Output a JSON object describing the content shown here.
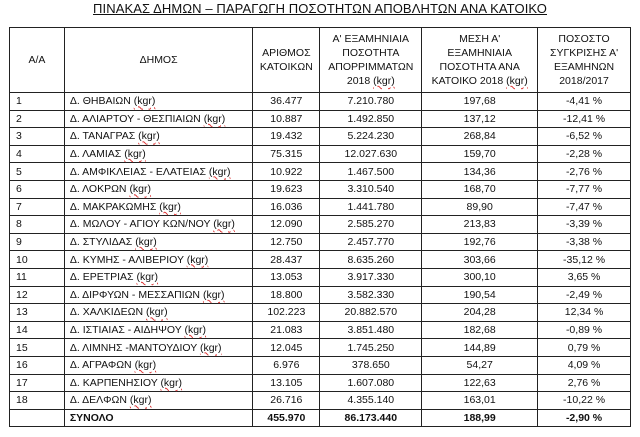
{
  "title": "ΠΙΝΑΚΑΣ ΔΗΜΩΝ – ΠΑΡΑΓΩΓΗ ΠΟΣΟΤΗΤΩΝ ΑΠΟΒΛΗΤΩΝ ΑΝΑ ΚΑΤΟΙΚΟ",
  "headers": {
    "aa": "Α/Α",
    "municipality": "ΔΗΜΟΣ",
    "population": "ΑΡΙΘΜΟΣ ΚΑΤΟΙΚΩΝ",
    "quantity": "Α' ΕΞΑΜΗΝΙΑΙΑ ΠΟΣΟΤΗΤΑ ΑΠΟΡΡΙΜΜΑΤΩΝ 2018",
    "quantity_unit": "(kgr)",
    "per_capita": "ΜΕΣΗ Α' ΕΞΑΜΗΝΙΑΙΑ ΠΟΣΟΤΗΤΑ ΑΝΑ ΚΑΤΟΙΚΟ 2018",
    "per_capita_unit": "(kgr)",
    "comparison": "ΠΟΣΟΣΤΟ ΣΥΓΚΡΙΣΗΣ Α' ΕΞΑΜΗΝΩΝ 2018/2017"
  },
  "rows": [
    {
      "aa": "1",
      "name": "Δ. ΘΗΒΑΙΩΝ",
      "unit": "(kgr)",
      "population": "36.477",
      "quantity": "7.210.780",
      "per_capita": "197,68",
      "change": "-4,41 %"
    },
    {
      "aa": "2",
      "name": "Δ. ΑΛΙΑΡΤΟΥ - ΘΕΣΠΙΑΙΩΝ",
      "unit": "(kgr)",
      "population": "10.887",
      "quantity": "1.492.850",
      "per_capita": "137,12",
      "change": "-12,41 %"
    },
    {
      "aa": "3",
      "name": "Δ. ΤΑΝΑΓΡΑΣ",
      "unit": "(kgr)",
      "population": "19.432",
      "quantity": "5.224.230",
      "per_capita": "268,84",
      "change": "-6,52 %"
    },
    {
      "aa": "4",
      "name": "Δ. ΛΑΜΙΑΣ",
      "unit": "(kgr)",
      "population": "75.315",
      "quantity": "12.027.630",
      "per_capita": "159,70",
      "change": "-2,28 %"
    },
    {
      "aa": "5",
      "name": "Δ. ΑΜΦΙΚΛΕΙΑΣ - ΕΛΑΤΕΙΑΣ",
      "unit": "(kgr)",
      "population": "10.922",
      "quantity": "1.467.500",
      "per_capita": "134,36",
      "change": "-2,76 %"
    },
    {
      "aa": "6",
      "name": "Δ. ΛΟΚΡΩΝ",
      "unit": "(kgr)",
      "population": "19.623",
      "quantity": "3.310.540",
      "per_capita": "168,70",
      "change": "-7,77 %"
    },
    {
      "aa": "7",
      "name": "Δ. ΜΑΚΡΑΚΩΜΗΣ",
      "unit": "(kgr)",
      "population": "16.036",
      "quantity": "1.441.780",
      "per_capita": "89,90",
      "change": "-7,47 %"
    },
    {
      "aa": "8",
      "name": "Δ. ΜΩΛΟΥ - ΑΓΙΟΥ ΚΩΝ/ΝΟΥ",
      "unit": "(kgr)",
      "population": "12.090",
      "quantity": "2.585.270",
      "per_capita": "213,83",
      "change": "-3,39 %"
    },
    {
      "aa": "9",
      "name": "Δ. ΣΤΥΛΙΔΑΣ",
      "unit": "(kgr)",
      "population": "12.750",
      "quantity": "2.457.770",
      "per_capita": "192,76",
      "change": "-3,38 %"
    },
    {
      "aa": "10",
      "name": "Δ. ΚΥΜΗΣ - ΑΛΙΒΕΡΙΟΥ",
      "unit": "(kgr)",
      "population": "28.437",
      "quantity": "8.635.260",
      "per_capita": "303,66",
      "change": "-35,12 %"
    },
    {
      "aa": "11",
      "name": "Δ. ΕΡΕΤΡΙΑΣ",
      "unit": "(kgr)",
      "population": "13.053",
      "quantity": "3.917.330",
      "per_capita": "300,10",
      "change": "3,65 %"
    },
    {
      "aa": "12",
      "name": "Δ. ΔΙΡΦΥΩΝ - ΜΕΣΣΑΠΙΩΝ",
      "unit": "(kgr)",
      "population": "18.800",
      "quantity": "3.582.330",
      "per_capita": "190,54",
      "change": "-2,49 %"
    },
    {
      "aa": "13",
      "name": "Δ. ΧΑΛΚΙΔΕΩΝ",
      "unit": "(kgr)",
      "population": "102.223",
      "quantity": "20.882.570",
      "per_capita": "204,28",
      "change": "12,34 %"
    },
    {
      "aa": "14",
      "name": "Δ. ΙΣΤΙΑΙΑΣ - ΑΙΔΗΨΟΥ",
      "unit": "(kgr)",
      "population": "21.083",
      "quantity": "3.851.480",
      "per_capita": "182,68",
      "change": "-0,89 %"
    },
    {
      "aa": "15",
      "name": "Δ. ΛΙΜΝΗΣ -ΜΑΝΤΟΥΔΙΟΥ",
      "unit": "(kgr)",
      "population": "12.045",
      "quantity": "1.745.250",
      "per_capita": "144,89",
      "change": "0,79 %"
    },
    {
      "aa": "16",
      "name": "Δ. ΑΓΡΑΦΩΝ",
      "unit": "(kgr)",
      "population": "6.976",
      "quantity": "378.650",
      "per_capita": "54,27",
      "change": "4,09 %"
    },
    {
      "aa": "17",
      "name": "Δ. ΚΑΡΠΕΝΗΣΙΟΥ",
      "unit": "(kgr)",
      "population": "13.105",
      "quantity": "1.607.080",
      "per_capita": "122,63",
      "change": "2,76 %"
    },
    {
      "aa": "18",
      "name": "Δ. ΔΕΛΦΩΝ",
      "unit": "(kgr)",
      "population": "26.716",
      "quantity": "4.355.140",
      "per_capita": "163,01",
      "change": "-10,22 %"
    }
  ],
  "total": {
    "label": "ΣΥΝΟΛΟ",
    "population": "455.970",
    "quantity": "86.173.440",
    "per_capita": "188,99",
    "change": "-2,90 %"
  }
}
